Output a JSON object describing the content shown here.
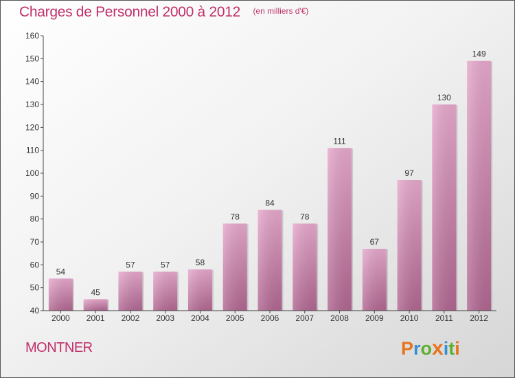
{
  "chart_data": {
    "type": "bar",
    "title": "Charges de Personnel 2000 à 2012",
    "subtitle": "(en milliers d'€)",
    "categories": [
      "2000",
      "2001",
      "2002",
      "2003",
      "2004",
      "2005",
      "2006",
      "2007",
      "2008",
      "2009",
      "2010",
      "2011",
      "2012"
    ],
    "values": [
      54,
      45,
      57,
      57,
      58,
      78,
      84,
      78,
      111,
      67,
      97,
      130,
      149
    ],
    "data_labels": [
      "54",
      "45",
      "57",
      "57",
      "58",
      "78",
      "84",
      "78",
      "111",
      "67",
      "97",
      "130",
      "149"
    ],
    "ylim": [
      40,
      160
    ],
    "yticks": [
      40,
      50,
      60,
      70,
      80,
      90,
      100,
      110,
      120,
      130,
      140,
      150,
      160
    ],
    "ytick_labels": [
      "40",
      "50",
      "60",
      "70",
      "80",
      "90",
      "100",
      "110",
      "120",
      "130",
      "140",
      "150",
      "160"
    ],
    "xlabel": "",
    "ylabel": "",
    "grid": false,
    "legend": "none",
    "bar_color": "#d890b8"
  },
  "footer": {
    "commune": "MONTNER",
    "logo": "Proxiti",
    "logo_colors": [
      "#e8741e",
      "#3a8fd0",
      "#5bb030",
      "#e8741e",
      "#3a8fd0",
      "#5bb030",
      "#e8741e"
    ]
  }
}
